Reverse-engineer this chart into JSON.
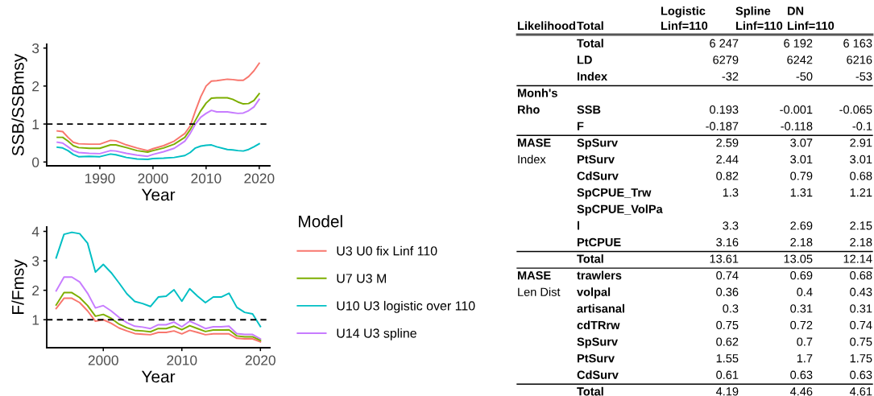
{
  "chart_data": [
    {
      "type": "line",
      "xlabel": "Year",
      "ylabel": "SSB/SSBmsy",
      "xlim": [
        1980,
        2022
      ],
      "ylim": [
        -0.1,
        3.1
      ],
      "xticks": [
        1990,
        2000,
        2010,
        2020
      ],
      "yticks": [
        0,
        1,
        2,
        3
      ],
      "grid": false,
      "legend": false,
      "x": [
        1982,
        1983,
        1984,
        1985,
        1986,
        1988,
        1990,
        1992,
        1993,
        1995,
        1997,
        1999,
        2000,
        2002,
        2004,
        2006,
        2007,
        2008,
        2009,
        2010,
        2011,
        2012,
        2014,
        2015,
        2016,
        2017,
        2018,
        2019,
        2020
      ],
      "ref_lines": [
        {
          "axis": "y",
          "value": 1,
          "color": "#000000",
          "line_style": "dashed"
        }
      ],
      "series": [
        {
          "color": "#f8766d",
          "values": [
            0.82,
            0.8,
            0.65,
            0.52,
            0.48,
            0.47,
            0.47,
            0.57,
            0.56,
            0.45,
            0.37,
            0.3,
            0.35,
            0.43,
            0.55,
            0.75,
            0.95,
            1.35,
            1.72,
            2.0,
            2.13,
            2.14,
            2.18,
            2.17,
            2.15,
            2.15,
            2.25,
            2.4,
            2.6
          ]
        },
        {
          "color": "#7cae00",
          "values": [
            0.65,
            0.65,
            0.55,
            0.43,
            0.38,
            0.36,
            0.36,
            0.45,
            0.45,
            0.38,
            0.3,
            0.26,
            0.3,
            0.37,
            0.47,
            0.65,
            0.85,
            1.1,
            1.35,
            1.55,
            1.68,
            1.69,
            1.69,
            1.65,
            1.58,
            1.53,
            1.54,
            1.62,
            1.8
          ]
        },
        {
          "color": "#00bfc4",
          "values": [
            0.39,
            0.37,
            0.3,
            0.2,
            0.14,
            0.15,
            0.14,
            0.21,
            0.19,
            0.12,
            0.08,
            0.07,
            0.09,
            0.1,
            0.12,
            0.17,
            0.25,
            0.37,
            0.42,
            0.44,
            0.45,
            0.4,
            0.33,
            0.32,
            0.3,
            0.29,
            0.33,
            0.4,
            0.48
          ]
        },
        {
          "color": "#c77cff",
          "values": [
            0.52,
            0.5,
            0.4,
            0.3,
            0.25,
            0.23,
            0.22,
            0.3,
            0.29,
            0.23,
            0.18,
            0.15,
            0.2,
            0.27,
            0.36,
            0.55,
            0.75,
            1.0,
            1.18,
            1.28,
            1.36,
            1.32,
            1.32,
            1.3,
            1.28,
            1.29,
            1.35,
            1.45,
            1.65
          ]
        }
      ]
    },
    {
      "type": "line",
      "xlabel": "Year",
      "ylabel": "F/Fmsy",
      "xlim": [
        1992.8,
        2021.2
      ],
      "ylim": [
        0.05,
        4.15
      ],
      "xticks": [
        2000,
        2010,
        2020
      ],
      "yticks": [
        1,
        2,
        3,
        4
      ],
      "grid": false,
      "legend": "right",
      "legend_title": "Model",
      "x": [
        1994,
        1995,
        1996,
        1997,
        1998,
        1999,
        2000,
        2001,
        2002,
        2003,
        2004,
        2005,
        2006,
        2007,
        2008,
        2009,
        2010,
        2011,
        2012,
        2013,
        2014,
        2015,
        2016,
        2017,
        2018,
        2019,
        2020
      ],
      "ref_lines": [
        {
          "axis": "y",
          "value": 1,
          "color": "#000000",
          "line_style": "dashed"
        }
      ],
      "series": [
        {
          "name": "U3 U0 fix Linf 110",
          "color": "#f8766d",
          "values": [
            1.38,
            1.73,
            1.73,
            1.58,
            1.3,
            0.95,
            1.0,
            0.88,
            0.72,
            0.62,
            0.53,
            0.51,
            0.49,
            0.57,
            0.57,
            0.62,
            0.52,
            0.64,
            0.57,
            0.49,
            0.52,
            0.52,
            0.52,
            0.37,
            0.35,
            0.35,
            0.25
          ]
        },
        {
          "name": "U7 U3 M",
          "color": "#7cae00",
          "values": [
            1.5,
            1.92,
            1.92,
            1.75,
            1.48,
            1.12,
            1.18,
            1.05,
            0.85,
            0.73,
            0.64,
            0.62,
            0.59,
            0.7,
            0.7,
            0.78,
            0.66,
            0.8,
            0.7,
            0.6,
            0.65,
            0.65,
            0.66,
            0.45,
            0.42,
            0.42,
            0.3
          ]
        },
        {
          "name": "U10 U3 logistic over 110",
          "color": "#00bfc4",
          "values": [
            3.1,
            3.9,
            3.97,
            3.92,
            3.6,
            2.62,
            2.88,
            2.6,
            2.25,
            1.88,
            1.62,
            1.55,
            1.45,
            1.77,
            1.8,
            2.02,
            1.63,
            2.05,
            1.8,
            1.58,
            1.77,
            1.77,
            1.9,
            1.42,
            1.25,
            1.2,
            0.77
          ]
        },
        {
          "name": "U14 U3 spline",
          "color": "#c77cff",
          "values": [
            1.98,
            2.45,
            2.45,
            2.28,
            1.9,
            1.4,
            1.48,
            1.3,
            1.08,
            0.9,
            0.78,
            0.75,
            0.7,
            0.83,
            0.83,
            0.92,
            0.76,
            0.95,
            0.83,
            0.7,
            0.76,
            0.76,
            0.78,
            0.53,
            0.5,
            0.5,
            0.35
          ]
        }
      ]
    },
    {
      "type": "other",
      "categories": [
        "Likelihood",
        "Total",
        "Logistic\nLinf=110",
        "Spline\nLinf=110",
        "DN\nLinf=110"
      ],
      "cell_labels": [
        [
          null,
          "Total",
          "6 247",
          "6 192",
          "6 163"
        ],
        [
          null,
          "LD",
          "6279",
          "6242",
          "6216"
        ],
        [
          null,
          "Index",
          "-32",
          "-50",
          "-53"
        ],
        [
          "Monh's",
          null,
          null,
          null,
          null
        ],
        [
          "Rho",
          "SSB",
          "0.193",
          "-0.001",
          "-0.065"
        ],
        [
          null,
          "F",
          "-0.187",
          "-0.118",
          "-0.1"
        ],
        [
          "MASE",
          "SpSurv",
          "2.59",
          "3.07",
          "2.91"
        ],
        [
          "Index",
          "PtSurv",
          "2.44",
          "3.01",
          "3.01"
        ],
        [
          null,
          "CdSurv",
          "0.82",
          "0.79",
          "0.68"
        ],
        [
          null,
          "SpCPUE_Trw",
          "1.3",
          "1.31",
          "1.21"
        ],
        [
          null,
          "SpCPUE_VolPa",
          null,
          null,
          null
        ],
        [
          null,
          "l",
          "3.3",
          "2.69",
          "2.15"
        ],
        [
          null,
          "PtCPUE",
          "3.16",
          "2.18",
          "2.18"
        ],
        [
          null,
          "Total",
          "13.61",
          "13.05",
          "12.14"
        ],
        [
          "MASE",
          "trawlers",
          "0.74",
          "0.69",
          "0.68"
        ],
        [
          "Len Dist",
          "volpal",
          "0.36",
          "0.4",
          "0.43"
        ],
        [
          null,
          "artisanal",
          "0.3",
          "0.31",
          "0.31"
        ],
        [
          null,
          "cdTRrw",
          "0.75",
          "0.72",
          "0.74"
        ],
        [
          null,
          "SpSurv",
          "0.62",
          "0.7",
          "0.75"
        ],
        [
          null,
          "PtSurv",
          "1.55",
          "1.7",
          "1.75"
        ],
        [
          null,
          "CdSurv",
          "0.61",
          "0.63",
          "0.63"
        ],
        [
          null,
          "Total",
          "4.19",
          "4.46",
          "4.61"
        ]
      ]
    }
  ]
}
